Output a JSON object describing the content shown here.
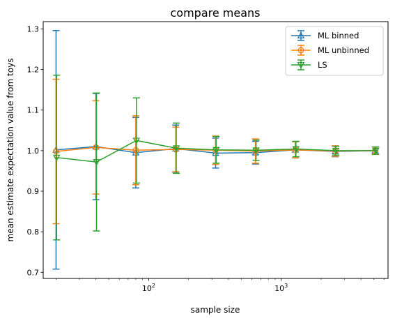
{
  "chart_data": {
    "type": "scatter",
    "title": "compare means",
    "xlabel": "sample size",
    "ylabel": "mean estimate expectation value from toys",
    "xscale": "log",
    "xlim": [
      16,
      6400
    ],
    "ylim": [
      0.685,
      1.318
    ],
    "grid": false,
    "legend_position": "top-right",
    "x_tick_labels": [
      {
        "base": "10",
        "exp": "2",
        "value": 100
      },
      {
        "base": "10",
        "exp": "3",
        "value": 1000
      }
    ],
    "y_ticks": [
      {
        "value": 0.7,
        "label": "0.7"
      },
      {
        "value": 0.8,
        "label": "0.8"
      },
      {
        "value": 0.9,
        "label": "0.9"
      },
      {
        "value": 1.0,
        "label": "1.0"
      },
      {
        "value": 1.1,
        "label": "1.1"
      },
      {
        "value": 1.2,
        "label": "1.2"
      },
      {
        "value": 1.3,
        "label": "1.3"
      }
    ],
    "x": [
      20,
      40,
      80,
      160,
      320,
      640,
      1280,
      2560,
      5120
    ],
    "series": [
      {
        "name": "ML binned",
        "color": "#1f77b4",
        "marker": "triangle-up",
        "x_offset": 1.0,
        "values": [
          1.002,
          1.01,
          0.995,
          1.005,
          0.994,
          0.995,
          1.002,
          0.998,
          1.0
        ],
        "errors": [
          0.294,
          0.131,
          0.087,
          0.058,
          0.037,
          0.028,
          0.02,
          0.013,
          0.009
        ]
      },
      {
        "name": "ML unbinned",
        "color": "#ff7f0e",
        "marker": "circle",
        "x_offset": 1.0,
        "values": [
          0.998,
          1.008,
          1.001,
          1.003,
          1.001,
          0.999,
          1.002,
          0.999,
          1.0
        ],
        "errors": [
          0.178,
          0.115,
          0.085,
          0.055,
          0.035,
          0.03,
          0.02,
          0.013,
          0.009
        ]
      },
      {
        "name": "LS",
        "color": "#2ca02c",
        "marker": "triangle-down",
        "x_offset": 1.01,
        "values": [
          0.983,
          0.972,
          1.025,
          1.006,
          1.002,
          1.001,
          1.004,
          1.0,
          1.0
        ],
        "errors": [
          0.203,
          0.17,
          0.105,
          0.062,
          0.033,
          0.025,
          0.019,
          0.011,
          0.009
        ]
      }
    ]
  }
}
